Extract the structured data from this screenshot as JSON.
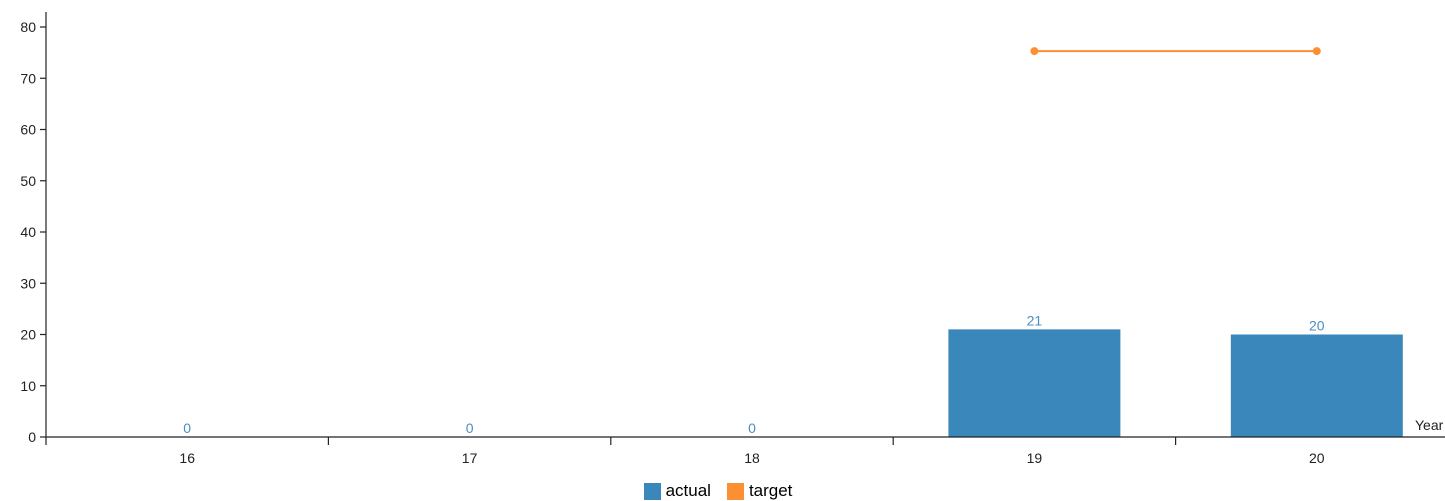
{
  "chart_data": {
    "type": "bar",
    "categories": [
      "16",
      "17",
      "18",
      "19",
      "20"
    ],
    "xlabel": "Year",
    "ylim": [
      0,
      80
    ],
    "yticks": [
      0,
      10,
      20,
      30,
      40,
      50,
      60,
      70,
      80
    ],
    "series": [
      {
        "name": "actual",
        "type": "bar",
        "color": "#3a87bb",
        "values": [
          0,
          0,
          0,
          21,
          20
        ],
        "data_labels": [
          "0",
          "0",
          "0",
          "21",
          "20"
        ]
      },
      {
        "name": "target",
        "type": "line",
        "color": "#fd8f33",
        "values": [
          null,
          null,
          null,
          75.3,
          75.3
        ]
      }
    ],
    "label_color": "#4a8fbf",
    "legend_position": "bottom-center"
  }
}
